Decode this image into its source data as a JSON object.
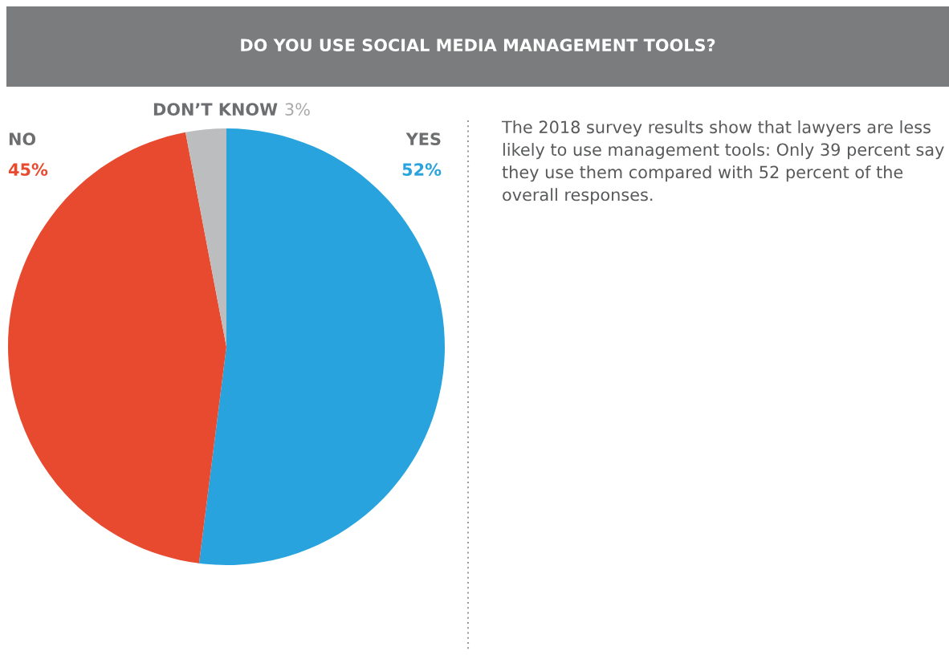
{
  "chart_data": {
    "type": "pie",
    "title": "DO YOU USE SOCIAL MEDIA MANAGEMENT TOOLS?",
    "categories": [
      "YES",
      "NO",
      "DON’T KNOW"
    ],
    "values": [
      52,
      45,
      3
    ],
    "value_labels": [
      "52%",
      "45%",
      "3%"
    ],
    "colors": [
      "#29a3dd",
      "#e84a2f",
      "#bcbdbf"
    ],
    "annotations": [
      "The 2018 survey results show that lawyers are less likely to use management tools: Only 39 percent say they use them compared with 52 percent of the overall responses."
    ]
  }
}
